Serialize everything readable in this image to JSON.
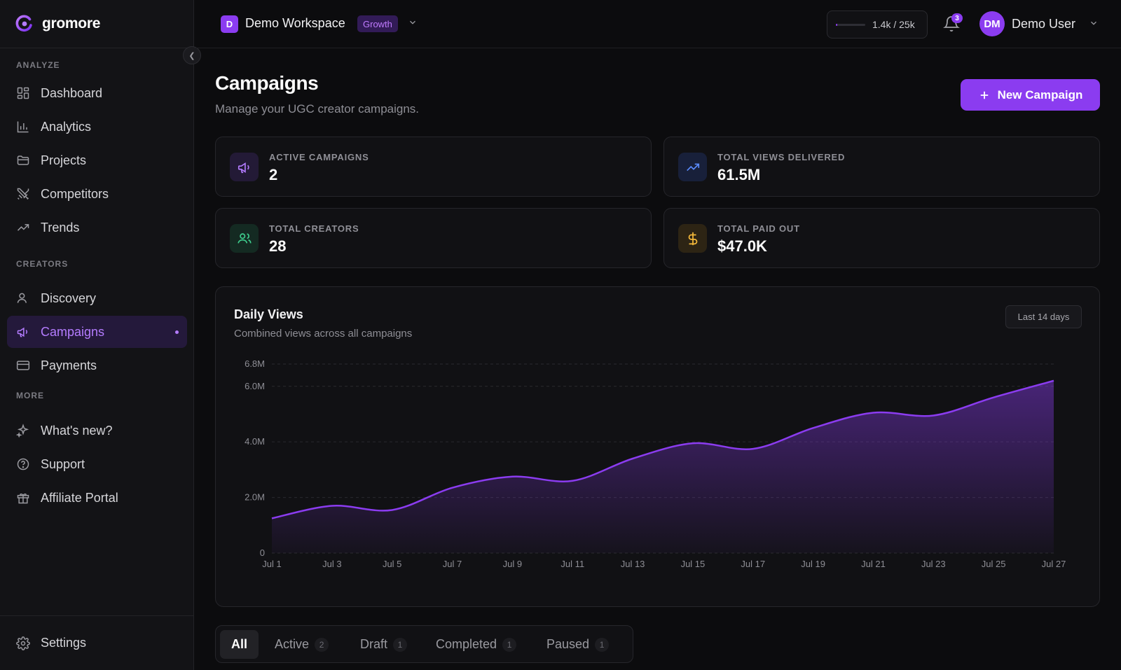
{
  "brand": {
    "name": "gromore"
  },
  "sidebar": {
    "sections": [
      {
        "label": "ANALYZE"
      },
      {
        "label": "CREATORS"
      },
      {
        "label": "MORE"
      }
    ],
    "items": [
      {
        "label": "Dashboard",
        "icon": "dashboard-icon"
      },
      {
        "label": "Analytics",
        "icon": "bar-chart-icon"
      },
      {
        "label": "Projects",
        "icon": "folder-icon"
      },
      {
        "label": "Competitors",
        "icon": "swords-icon"
      },
      {
        "label": "Trends",
        "icon": "trending-icon"
      },
      {
        "label": "Discovery",
        "icon": "user-search-icon"
      },
      {
        "label": "Campaigns",
        "icon": "megaphone-icon",
        "active": true
      },
      {
        "label": "Payments",
        "icon": "credit-card-icon"
      },
      {
        "label": "What's new?",
        "icon": "sparkles-icon"
      },
      {
        "label": "Support",
        "icon": "help-circle-icon"
      },
      {
        "label": "Affiliate Portal",
        "icon": "gift-icon"
      }
    ],
    "settings": "Settings"
  },
  "topbar": {
    "workspace_initial": "D",
    "workspace_name": "Demo Workspace",
    "plan": "Growth",
    "usage_text": "1.4k / 25k",
    "usage_fraction": 0.056,
    "notifications": "3",
    "user_initials": "DM",
    "user_name": "Demo User"
  },
  "page": {
    "title": "Campaigns",
    "subtitle": "Manage your UGC creator campaigns.",
    "new_button": "New Campaign"
  },
  "stats": [
    {
      "label": "ACTIVE CAMPAIGNS",
      "value": "2",
      "icon": "megaphone-icon",
      "color": "#b47cff"
    },
    {
      "label": "TOTAL VIEWS DELIVERED",
      "value": "61.5M",
      "icon": "trending-up-icon",
      "color": "#5b8cff"
    },
    {
      "label": "TOTAL CREATORS",
      "value": "28",
      "icon": "users-icon",
      "color": "#3ecf8e"
    },
    {
      "label": "TOTAL PAID OUT",
      "value": "$47.0K",
      "icon": "dollar-icon",
      "color": "#f5b93a"
    }
  ],
  "chart": {
    "title": "Daily Views",
    "subtitle": "Combined views across all campaigns",
    "range": "Last 14 days"
  },
  "chart_data": {
    "type": "area",
    "x": [
      "Jul 1",
      "Jul 3",
      "Jul 5",
      "Jul 7",
      "Jul 9",
      "Jul 11",
      "Jul 13",
      "Jul 15",
      "Jul 17",
      "Jul 19",
      "Jul 21",
      "Jul 23",
      "Jul 25",
      "Jul 27"
    ],
    "series": [
      {
        "values": [
          1.25,
          1.7,
          1.55,
          2.35,
          2.75,
          2.6,
          3.4,
          3.95,
          3.75,
          4.5,
          5.05,
          4.95,
          5.6,
          6.2
        ]
      }
    ],
    "ytick_labels": [
      "0",
      "2.0M",
      "4.0M",
      "6.0M",
      "6.8M"
    ],
    "yticks": [
      0,
      2,
      4,
      6,
      6.8
    ],
    "ylim": [
      0,
      6.8
    ],
    "color": "#8b3cf0",
    "grid": true
  },
  "tabs": [
    {
      "label": "All",
      "count": ""
    },
    {
      "label": "Active",
      "count": "2"
    },
    {
      "label": "Draft",
      "count": "1"
    },
    {
      "label": "Completed",
      "count": "1"
    },
    {
      "label": "Paused",
      "count": "1"
    }
  ]
}
